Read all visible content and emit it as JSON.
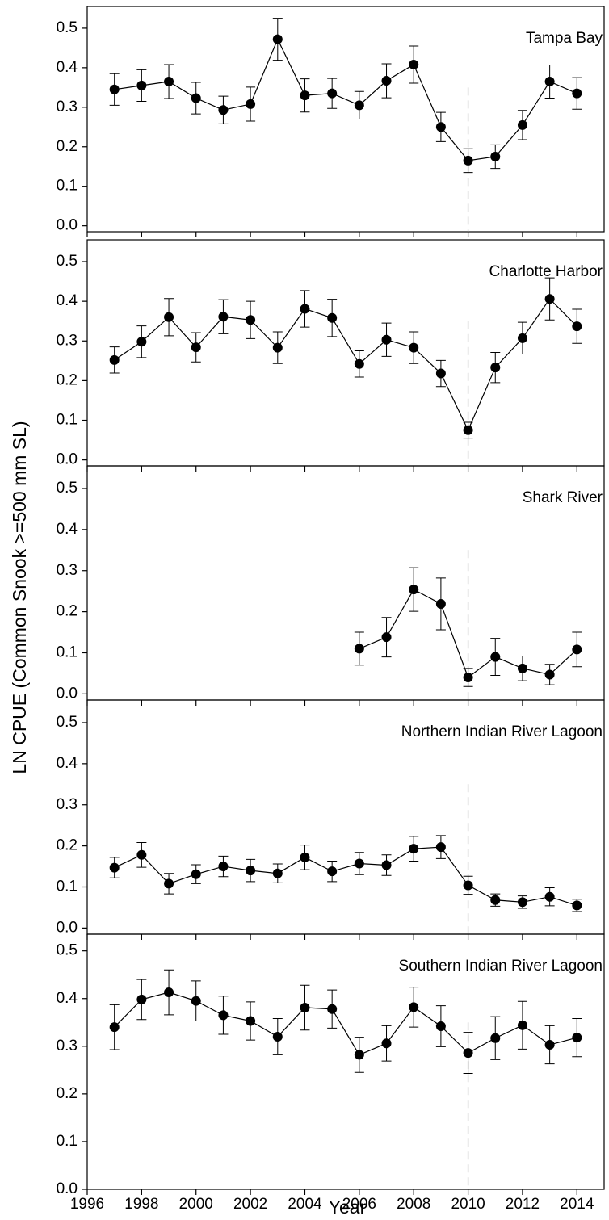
{
  "ylabel": "LN CPUE (Common Snook >=500 mm SL)",
  "xlabel": "Year",
  "chart_data": [
    {
      "type": "line",
      "title": "Tampa Bay",
      "x": [
        1997,
        1998,
        1999,
        2000,
        2001,
        2002,
        2003,
        2004,
        2005,
        2006,
        2007,
        2008,
        2009,
        2010,
        2011,
        2012,
        2013,
        2014
      ],
      "series": [
        {
          "color": "#000000",
          "values": [
            0.345,
            0.355,
            0.365,
            0.323,
            0.293,
            0.308,
            0.472,
            0.33,
            0.335,
            0.305,
            0.367,
            0.408,
            0.25,
            0.165,
            0.175,
            0.255,
            0.365,
            0.335
          ],
          "errors": [
            0.04,
            0.04,
            0.043,
            0.04,
            0.035,
            0.043,
            0.053,
            0.042,
            0.038,
            0.035,
            0.043,
            0.047,
            0.037,
            0.03,
            0.03,
            0.037,
            0.042,
            0.04
          ]
        }
      ],
      "xlim": [
        1996,
        2015
      ],
      "ylim": [
        -0.015,
        0.555
      ],
      "yticks": [
        {
          "value": 0,
          "label": "0.0"
        },
        0.1,
        0.2,
        0.3,
        0.4,
        0.5
      ],
      "reference_x": 2010
    },
    {
      "type": "line",
      "title": "Charlotte Harbor",
      "x": [
        1997,
        1998,
        1999,
        2000,
        2001,
        2002,
        2003,
        2004,
        2005,
        2006,
        2007,
        2008,
        2009,
        2010,
        2011,
        2012,
        2013,
        2014
      ],
      "series": [
        {
          "color": "#000000",
          "values": [
            0.252,
            0.298,
            0.36,
            0.284,
            0.361,
            0.353,
            0.283,
            0.381,
            0.358,
            0.242,
            0.303,
            0.283,
            0.218,
            0.075,
            0.233,
            0.307,
            0.406,
            0.337
          ],
          "errors": [
            0.033,
            0.04,
            0.047,
            0.037,
            0.043,
            0.047,
            0.04,
            0.046,
            0.047,
            0.033,
            0.042,
            0.04,
            0.033,
            0.02,
            0.038,
            0.04,
            0.053,
            0.043
          ]
        }
      ],
      "xlim": [
        1996,
        2015
      ],
      "ylim": [
        -0.015,
        0.555
      ],
      "yticks": [
        {
          "value": 0,
          "label": "0.0"
        },
        0.1,
        0.2,
        0.3,
        0.4,
        0.5
      ],
      "reference_x": 2010
    },
    {
      "type": "line",
      "title": "Shark River",
      "x": [
        1997,
        1998,
        1999,
        2000,
        2001,
        2002,
        2003,
        2004,
        2005,
        2006,
        2007,
        2008,
        2009,
        2010,
        2011,
        2012,
        2013,
        2014
      ],
      "series": [
        {
          "color": "#000000",
          "values": [
            null,
            null,
            null,
            null,
            null,
            null,
            null,
            null,
            null,
            0.11,
            0.138,
            0.254,
            0.219,
            0.04,
            0.09,
            0.062,
            0.047,
            0.108
          ],
          "errors": [
            null,
            null,
            null,
            null,
            null,
            null,
            null,
            null,
            null,
            0.04,
            0.048,
            0.053,
            0.063,
            0.022,
            0.045,
            0.03,
            0.025,
            0.042
          ]
        }
      ],
      "xlim": [
        1996,
        2015
      ],
      "ylim": [
        -0.015,
        0.555
      ],
      "yticks": [
        {
          "value": 0,
          "label": "0.0"
        },
        0.1,
        0.2,
        0.3,
        0.4,
        0.5
      ],
      "reference_x": 2010
    },
    {
      "type": "line",
      "title": "Northern Indian River Lagoon",
      "x": [
        1997,
        1998,
        1999,
        2000,
        2001,
        2002,
        2003,
        2004,
        2005,
        2006,
        2007,
        2008,
        2009,
        2010,
        2011,
        2012,
        2013,
        2014
      ],
      "series": [
        {
          "color": "#000000",
          "values": [
            0.147,
            0.178,
            0.108,
            0.131,
            0.15,
            0.14,
            0.133,
            0.172,
            0.138,
            0.157,
            0.153,
            0.193,
            0.197,
            0.104,
            0.068,
            0.063,
            0.076,
            0.055
          ],
          "errors": [
            0.025,
            0.03,
            0.025,
            0.023,
            0.025,
            0.027,
            0.023,
            0.03,
            0.025,
            0.027,
            0.025,
            0.03,
            0.028,
            0.022,
            0.015,
            0.015,
            0.022,
            0.015
          ]
        }
      ],
      "xlim": [
        1996,
        2015
      ],
      "ylim": [
        -0.015,
        0.555
      ],
      "yticks": [
        {
          "value": 0,
          "label": "0.0"
        },
        0.1,
        0.2,
        0.3,
        0.4,
        0.5
      ],
      "reference_x": 2010
    },
    {
      "type": "line",
      "title": "Southern Indian River Lagoon",
      "x": [
        1997,
        1998,
        1999,
        2000,
        2001,
        2002,
        2003,
        2004,
        2005,
        2006,
        2007,
        2008,
        2009,
        2010,
        2011,
        2012,
        2013,
        2014
      ],
      "series": [
        {
          "color": "#000000",
          "values": [
            0.34,
            0.398,
            0.413,
            0.395,
            0.365,
            0.353,
            0.32,
            0.381,
            0.378,
            0.282,
            0.306,
            0.382,
            0.342,
            0.286,
            0.317,
            0.344,
            0.303,
            0.318
          ],
          "errors": [
            0.047,
            0.042,
            0.047,
            0.042,
            0.04,
            0.04,
            0.038,
            0.047,
            0.04,
            0.037,
            0.037,
            0.042,
            0.043,
            0.043,
            0.045,
            0.05,
            0.04,
            0.04
          ]
        }
      ],
      "xlim": [
        1996,
        2015
      ],
      "ylim": [
        0,
        0.535
      ],
      "xticks": [
        1996,
        1998,
        2000,
        2002,
        2004,
        2006,
        2008,
        2010,
        2012,
        2014
      ],
      "yticks": [
        {
          "value": 0,
          "label": "0.0"
        },
        0.1,
        0.2,
        0.3,
        0.4,
        0.5
      ],
      "reference_x": 2010
    }
  ]
}
